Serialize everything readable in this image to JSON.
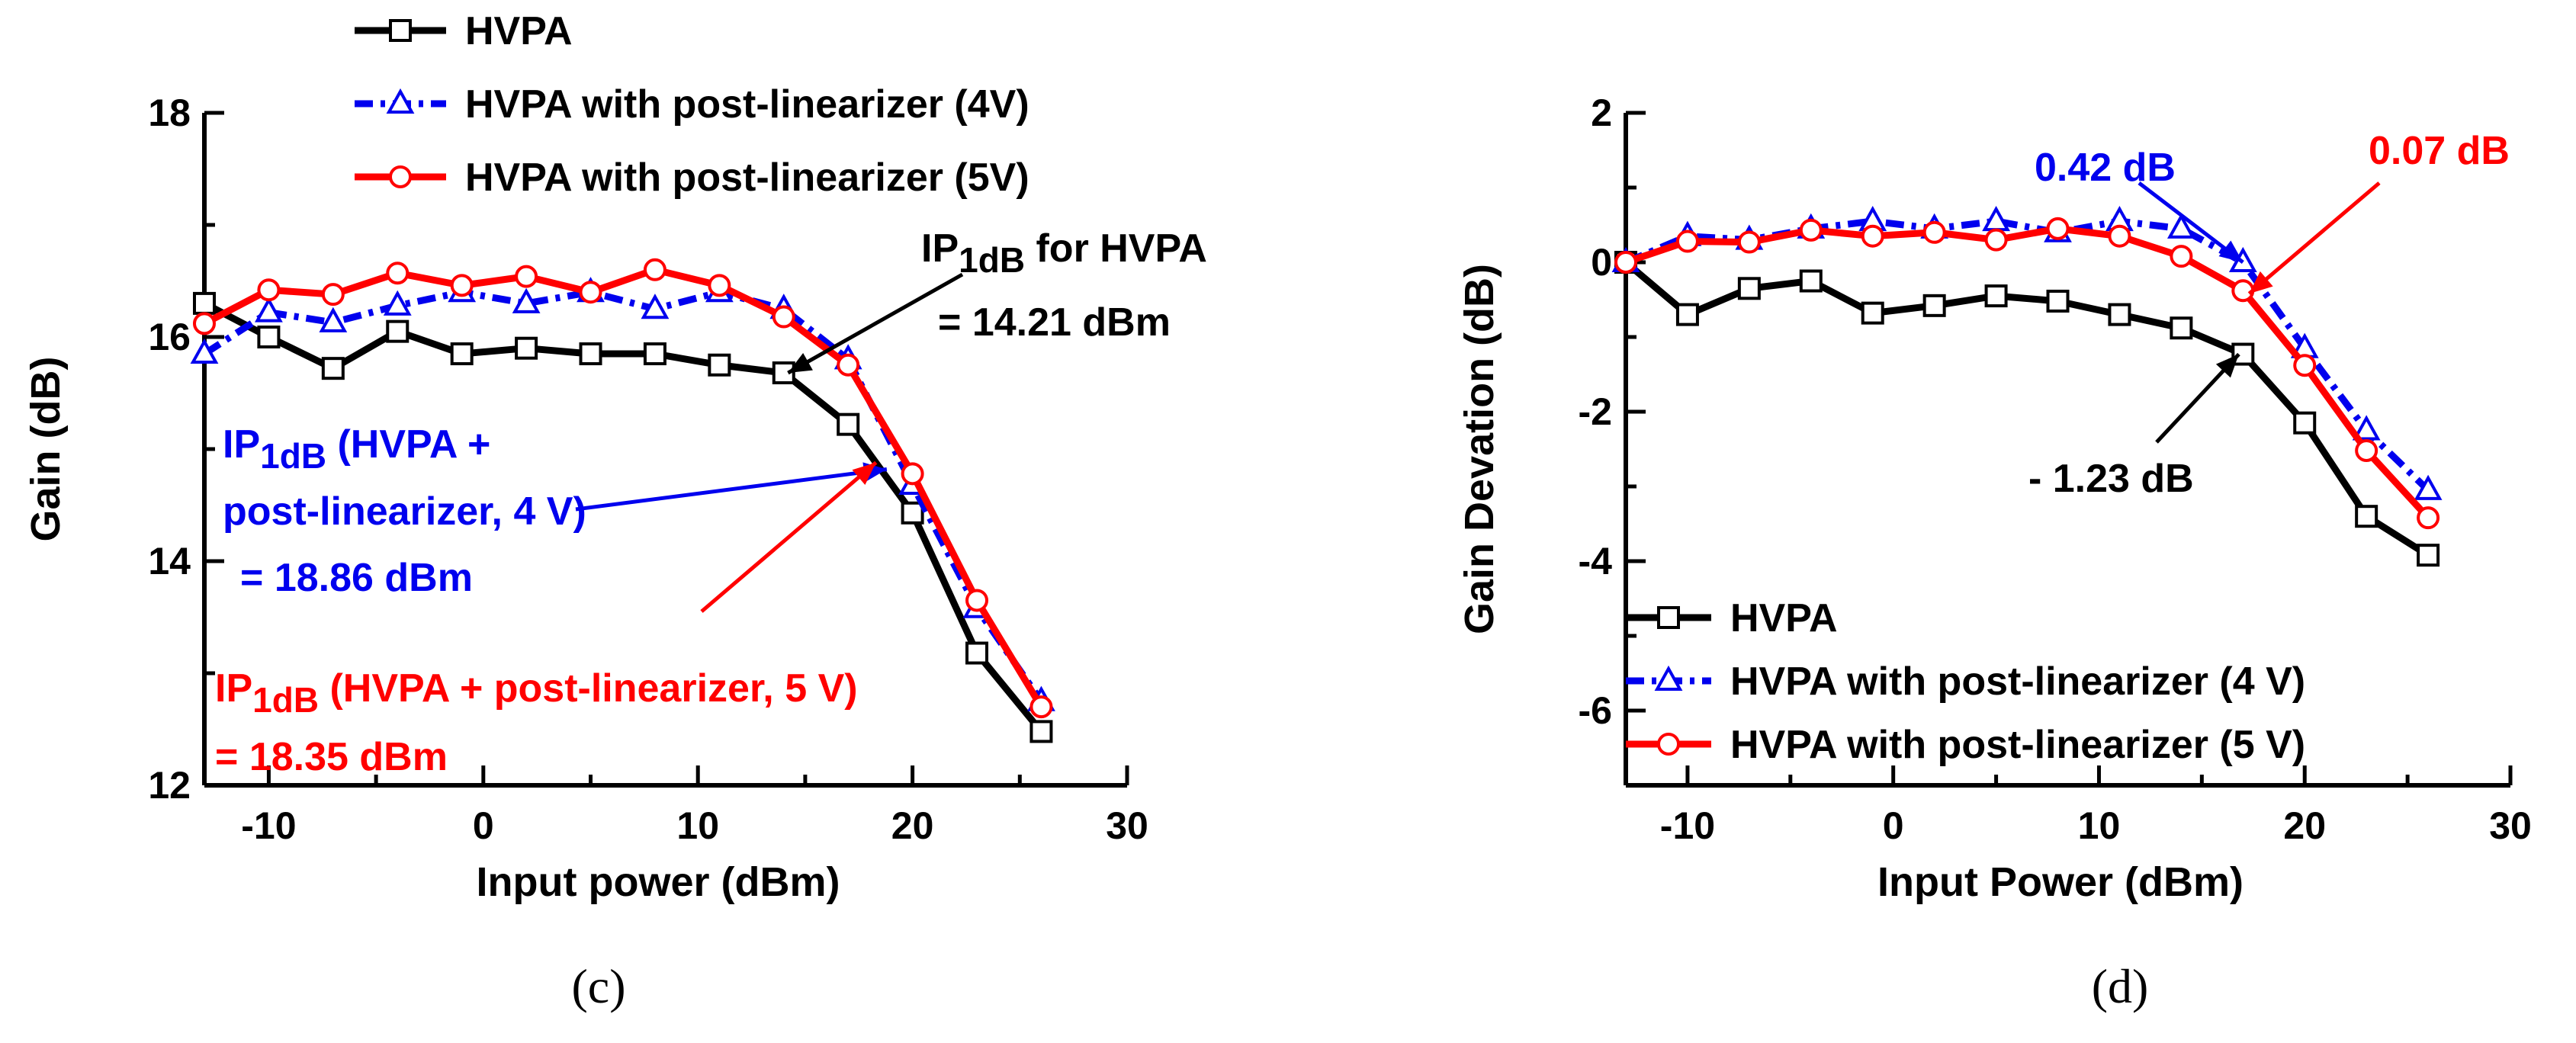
{
  "chart_data": [
    {
      "type": "line",
      "panel_label": "(c)",
      "xlabel": "Input power (dBm)",
      "ylabel": "Gain (dB)",
      "xlim": [
        -13,
        30
      ],
      "ylim": [
        12,
        18
      ],
      "xticks": [
        -10,
        0,
        10,
        20,
        30
      ],
      "yticks": [
        12,
        14,
        16,
        18
      ],
      "x": [
        -13,
        -10,
        -7,
        -4,
        -1,
        2,
        5,
        8,
        11,
        14,
        17,
        20,
        23,
        26
      ],
      "series": [
        {
          "name": "HVPA",
          "color": "#000000",
          "marker": "square",
          "dash": "solid",
          "values": [
            16.3,
            16.0,
            15.72,
            16.05,
            15.85,
            15.9,
            15.85,
            15.85,
            15.75,
            15.68,
            15.22,
            14.43,
            13.18,
            12.48
          ]
        },
        {
          "name": "HVPA with post-linearizer (4V)",
          "color": "#0000ee",
          "marker": "triangle",
          "dash": "dashdot",
          "values": [
            15.85,
            16.22,
            16.13,
            16.28,
            16.4,
            16.3,
            16.4,
            16.25,
            16.4,
            16.25,
            15.8,
            14.68,
            13.58,
            12.75
          ]
        },
        {
          "name": "HVPA with post-linearizer (5V)",
          "color": "#ff0000",
          "marker": "circle",
          "dash": "solid",
          "values": [
            16.12,
            16.42,
            16.38,
            16.57,
            16.46,
            16.54,
            16.4,
            16.6,
            16.46,
            16.18,
            15.75,
            14.78,
            13.65,
            12.7
          ]
        }
      ],
      "legend_position": "top",
      "annotations": [
        {
          "id": "hvpa-ip1db",
          "color": "#000000",
          "lines": [
            [
              "IP",
              "1dB",
              " for HVPA"
            ],
            [
              "= 14.21 dBm"
            ]
          ],
          "arrow_to": {
            "x": 14.2,
            "y": 15.68
          }
        },
        {
          "id": "4v-ip1db",
          "color": "#0000ee",
          "lines": [
            [
              "IP",
              "1dB",
              " (HVPA +"
            ],
            [
              "post-linearizer, 4 V)"
            ],
            [
              " = 18.86 dBm"
            ]
          ],
          "arrow_to": {
            "x": 18.8,
            "y": 14.82
          }
        },
        {
          "id": "5v-ip1db",
          "color": "#ff0000",
          "lines": [
            [
              "IP",
              "1dB",
              " (HVPA + post-linearizer, 5 V)"
            ],
            [
              "= 18.35 dBm"
            ]
          ],
          "arrow_to": {
            "x": 18.3,
            "y": 14.88
          }
        }
      ]
    },
    {
      "type": "line",
      "panel_label": "(d)",
      "xlabel": "Input Power (dBm)",
      "ylabel": "Gain Devation (dB)",
      "xlim": [
        -13,
        30
      ],
      "ylim": [
        -7,
        2
      ],
      "xticks": [
        -10,
        0,
        10,
        20,
        30
      ],
      "yticks": [
        -6,
        -4,
        -2,
        0,
        2
      ],
      "x": [
        -13,
        -10,
        -7,
        -4,
        -1,
        2,
        5,
        8,
        11,
        14,
        17,
        20,
        23,
        26
      ],
      "series": [
        {
          "name": "HVPA",
          "color": "#000000",
          "marker": "square",
          "dash": "solid",
          "values": [
            0,
            -0.7,
            -0.35,
            -0.25,
            -0.68,
            -0.58,
            -0.45,
            -0.52,
            -0.7,
            -0.88,
            -1.23,
            -2.15,
            -3.4,
            -3.92
          ]
        },
        {
          "name": "HVPA with post-linearizer (4 V)",
          "color": "#0000ee",
          "marker": "triangle",
          "dash": "dashdot",
          "values": [
            0,
            0.35,
            0.3,
            0.45,
            0.55,
            0.45,
            0.55,
            0.4,
            0.55,
            0.45,
            0.0,
            -1.15,
            -2.25,
            -3.05
          ]
        },
        {
          "name": "HVPA with post-linearizer (5 V)",
          "color": "#ff0000",
          "marker": "circle",
          "dash": "solid",
          "values": [
            0,
            0.28,
            0.27,
            0.43,
            0.35,
            0.4,
            0.3,
            0.45,
            0.35,
            0.08,
            -0.38,
            -1.38,
            -2.52,
            -3.42
          ]
        }
      ],
      "legend_position": "bottom-left",
      "annotations": [
        {
          "id": "4v-dev",
          "color": "#0000ee",
          "lines": [
            [
              "0.42 dB"
            ]
          ],
          "arrow_to": {
            "x": 17,
            "y": 0.0
          }
        },
        {
          "id": "5v-dev",
          "color": "#ff0000",
          "lines": [
            [
              "0.07 dB"
            ]
          ],
          "arrow_to": {
            "x": 17.3,
            "y": -0.42
          }
        },
        {
          "id": "hvpa-dev",
          "color": "#000000",
          "lines": [
            [
              "- 1.23 dB"
            ]
          ],
          "arrow_to": {
            "x": 16.8,
            "y": -1.23
          }
        }
      ]
    }
  ]
}
